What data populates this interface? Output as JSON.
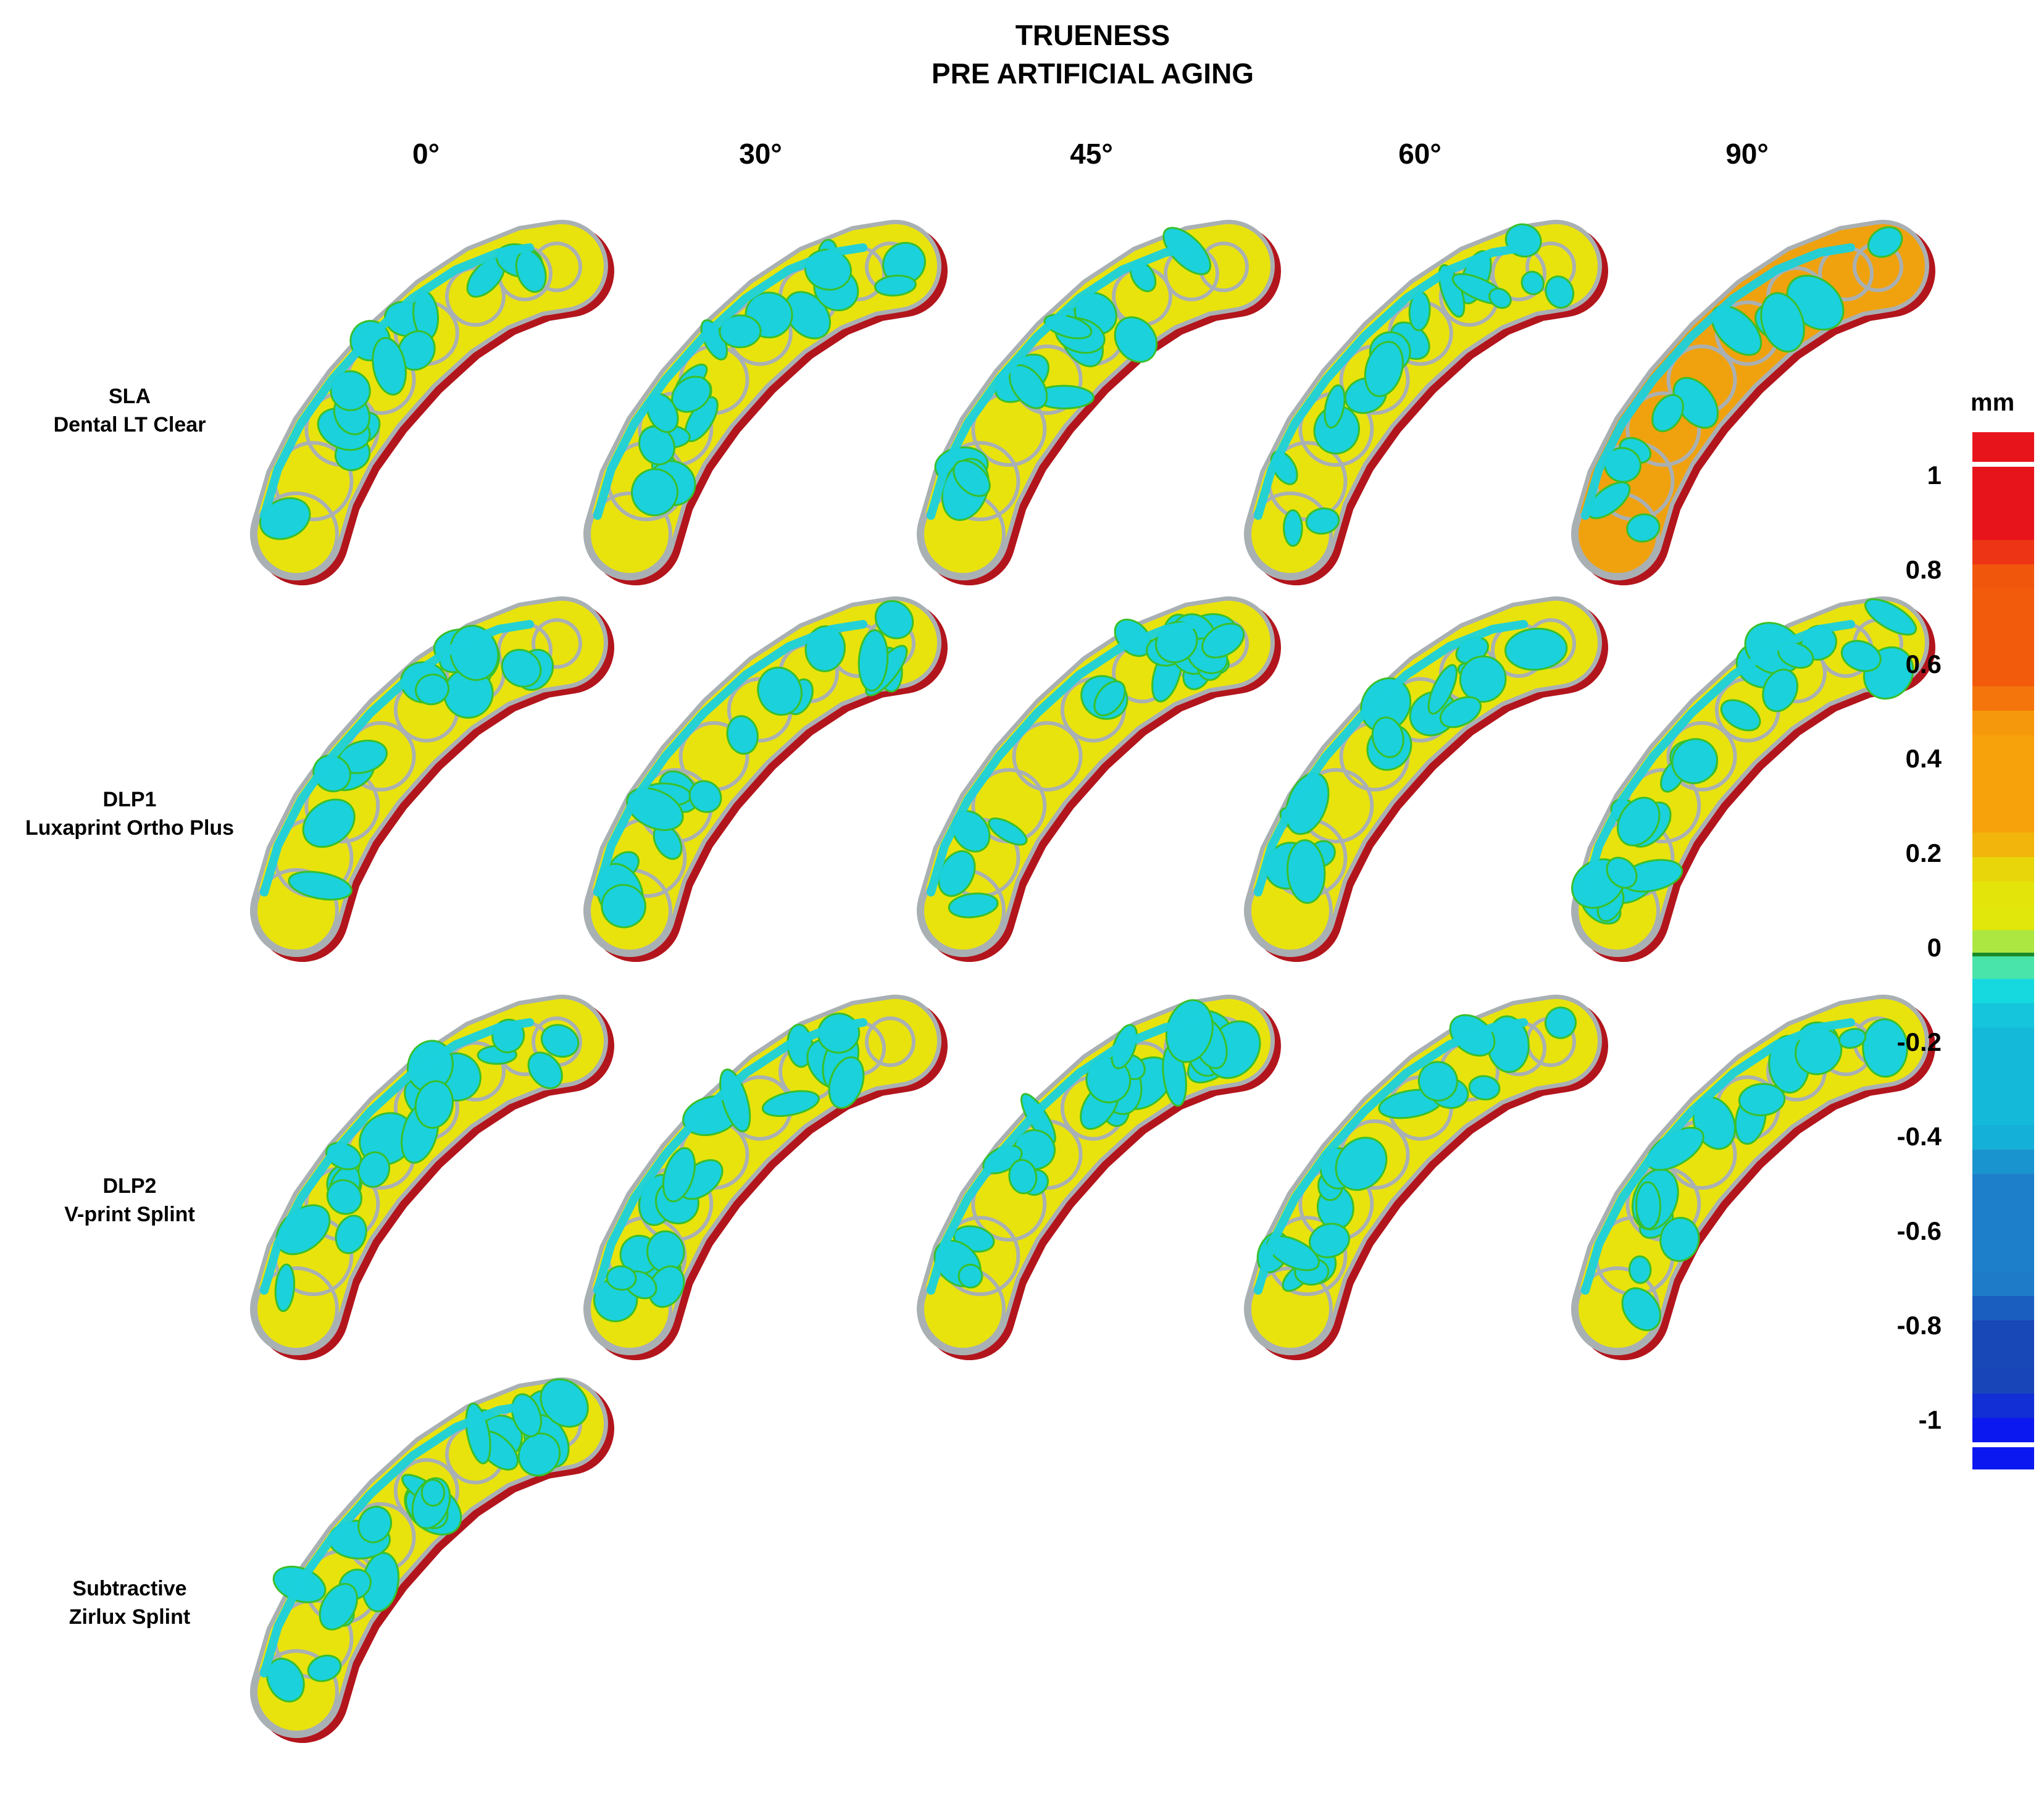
{
  "title": {
    "line1": "TRUENESS",
    "line2": "PRE ARTIFICIAL AGING"
  },
  "columns": [
    "0°",
    "30°",
    "45°",
    "60°",
    "90°"
  ],
  "rows": [
    {
      "line1": "SLA",
      "line2": "Dental LT Clear"
    },
    {
      "line1": "DLP1",
      "line2": "Luxaprint Ortho Plus"
    },
    {
      "line1": "DLP2",
      "line2": "V-print Splint"
    },
    {
      "line1": "Subtractive",
      "line2": "Zirlux Splint"
    }
  ],
  "legend": {
    "unit": "mm",
    "ticks": [
      "1",
      "0.8",
      "0.6",
      "0.4",
      "0.2",
      "0",
      "-0.2",
      "-0.4",
      "-0.6",
      "-0.8",
      "-1"
    ],
    "colors": {
      "max": "#e8141b",
      "high": "#f25a0c",
      "mid_high": "#f7a10b",
      "low_pos": "#e4e20a",
      "zero_pos": "#e0e80a",
      "zero_neg": "#15e3e0",
      "low_neg": "#14b9d9",
      "mid_neg": "#1d7fc9",
      "high_neg": "#1847b8",
      "min": "#0b19f0"
    }
  },
  "scan_colors": {
    "yellow": "#e9e30d",
    "cyan": "#1ad1dc",
    "red_edge": "#b3151c",
    "orange": "#f0a20e",
    "green_outline": "#39c02a",
    "grey_rim": "#a9b0b3"
  }
}
